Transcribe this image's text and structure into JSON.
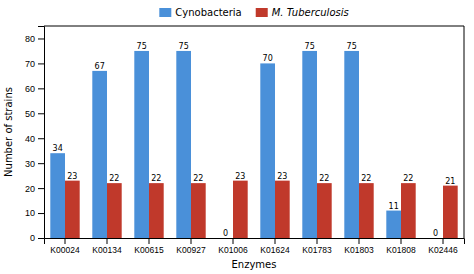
{
  "chart_data": {
    "type": "bar",
    "categories": [
      "K00024",
      "K00134",
      "K00615",
      "K00927",
      "K01006",
      "K01624",
      "K01783",
      "K01803",
      "K01808",
      "K02446"
    ],
    "series": [
      {
        "name": "Cynobacteria",
        "color": "#4a90d9",
        "values": [
          34,
          67,
          75,
          75,
          0,
          70,
          75,
          75,
          11,
          0
        ]
      },
      {
        "name": "M. Tuberculosis",
        "color": "#c0392b",
        "values": [
          23,
          22,
          22,
          22,
          23,
          23,
          22,
          22,
          22,
          21
        ]
      }
    ],
    "xlabel": "Enzymes",
    "ylabel": "Number of strains",
    "ylim": [
      0,
      85
    ],
    "yticks": [
      0,
      10,
      20,
      30,
      40,
      50,
      60,
      70,
      80
    ],
    "grid": false,
    "legend": "top",
    "data_labels": true
  }
}
